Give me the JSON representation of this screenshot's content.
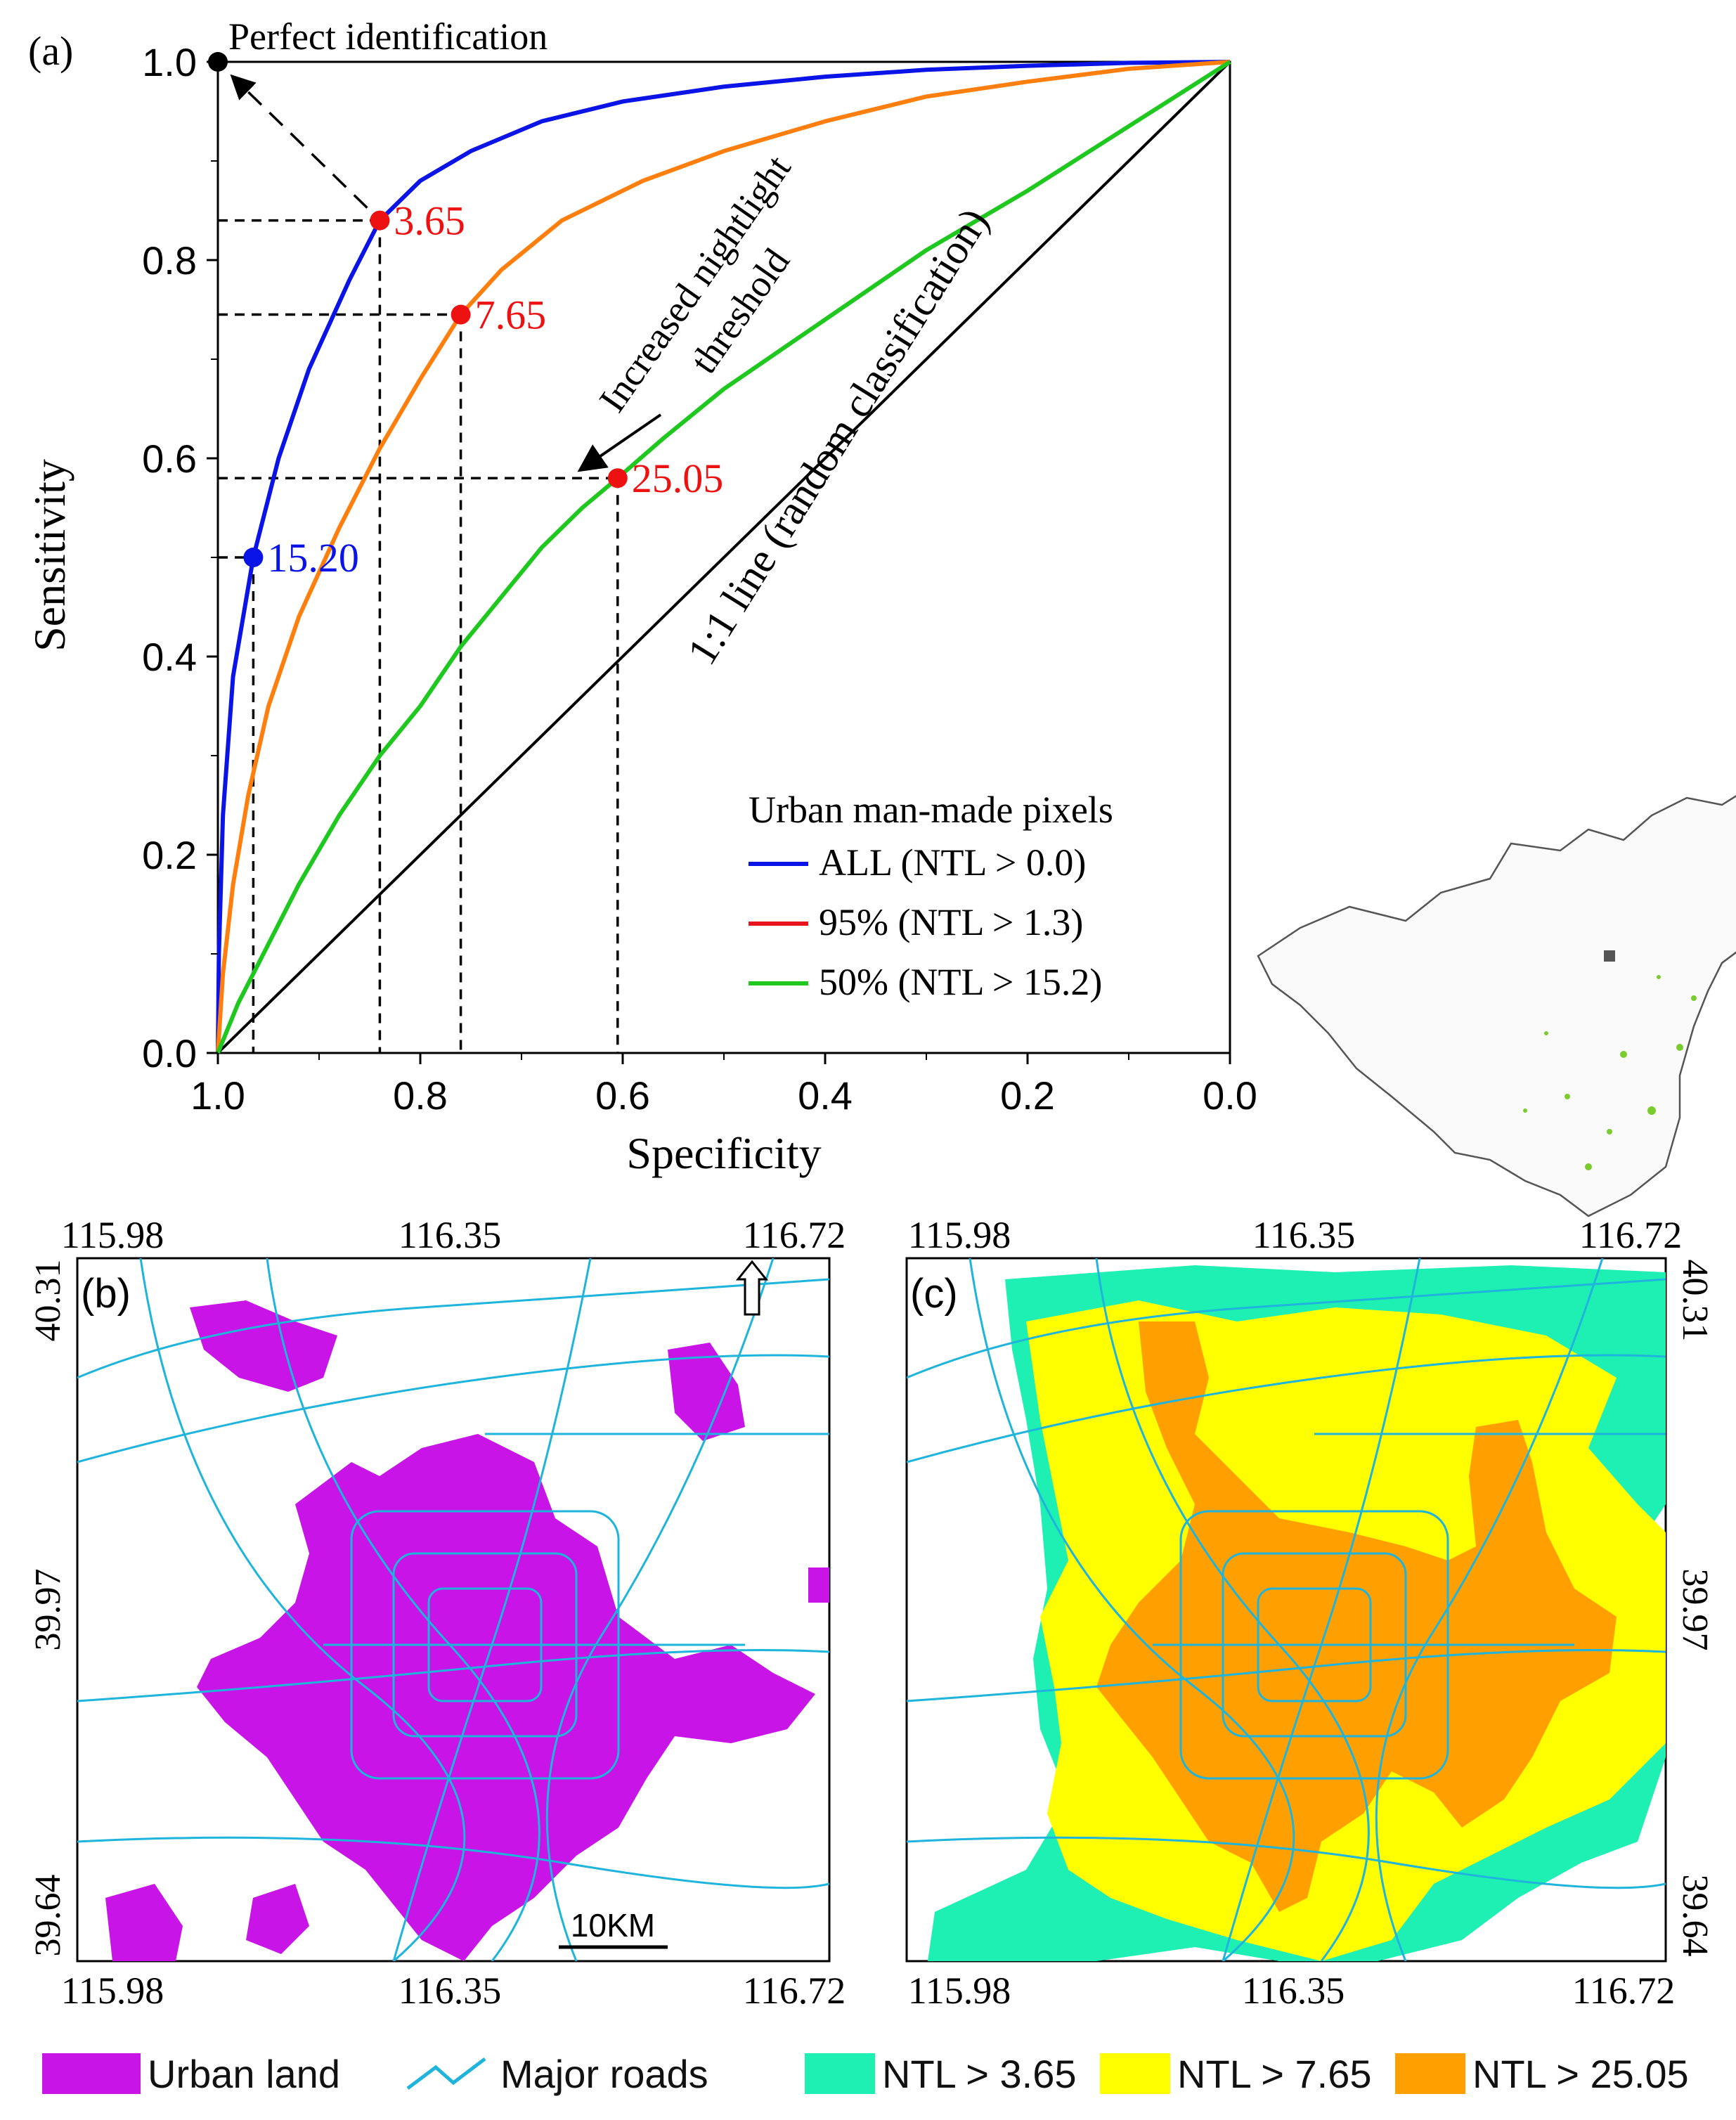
{
  "panel_a": {
    "label": "(a)",
    "perfect_label": "Perfect identification",
    "arrow_text_1": "Increased nightlight",
    "arrow_text_2": "threshold",
    "diag_label": "1:1 line (random classification)",
    "legend_title": "Urban man-made pixels"
  },
  "chart_data": {
    "type": "line",
    "xlabel": "Specificity",
    "ylabel": "Sensitivity",
    "xlim": [
      1.0,
      0.0
    ],
    "ylim": [
      0.0,
      1.0
    ],
    "x_ticks": [
      "1.0",
      "0.8",
      "0.6",
      "0.4",
      "0.2",
      "0.0"
    ],
    "y_ticks": [
      "0.0",
      "0.2",
      "0.4",
      "0.6",
      "0.8",
      "1.0"
    ],
    "grid": false,
    "legend_position": "bottom-right",
    "series": [
      {
        "name": "ALL (NTL > 0.0)",
        "color": "#0a14e6",
        "x": [
          1.0,
          0.999,
          0.995,
          0.985,
          0.965,
          0.94,
          0.91,
          0.87,
          0.84,
          0.8,
          0.75,
          0.68,
          0.6,
          0.5,
          0.4,
          0.3,
          0.2,
          0.1,
          0.0
        ],
        "y": [
          0.0,
          0.1,
          0.24,
          0.38,
          0.5,
          0.6,
          0.69,
          0.78,
          0.84,
          0.88,
          0.91,
          0.94,
          0.96,
          0.975,
          0.985,
          0.992,
          0.996,
          0.999,
          1.0
        ]
      },
      {
        "name": "95% (NTL > 1.3)",
        "color": "#ff7f0e",
        "legend_color": "#e8141e",
        "x": [
          1.0,
          0.995,
          0.985,
          0.97,
          0.95,
          0.92,
          0.88,
          0.84,
          0.8,
          0.76,
          0.72,
          0.66,
          0.58,
          0.5,
          0.4,
          0.3,
          0.2,
          0.1,
          0.0
        ],
        "y": [
          0.0,
          0.08,
          0.17,
          0.26,
          0.35,
          0.44,
          0.53,
          0.61,
          0.68,
          0.745,
          0.79,
          0.84,
          0.88,
          0.91,
          0.94,
          0.965,
          0.98,
          0.993,
          1.0
        ]
      },
      {
        "name": "50% (NTL > 15.2)",
        "color": "#1ec81e",
        "x": [
          1.0,
          0.98,
          0.95,
          0.92,
          0.88,
          0.84,
          0.8,
          0.76,
          0.72,
          0.68,
          0.64,
          0.605,
          0.56,
          0.5,
          0.4,
          0.3,
          0.2,
          0.1,
          0.0
        ],
        "y": [
          0.0,
          0.05,
          0.11,
          0.17,
          0.24,
          0.3,
          0.35,
          0.41,
          0.46,
          0.51,
          0.55,
          0.58,
          0.62,
          0.67,
          0.74,
          0.81,
          0.87,
          0.935,
          1.0
        ]
      }
    ],
    "diagonal": {
      "x": [
        1.0,
        0.0
      ],
      "y": [
        0.0,
        1.0
      ]
    },
    "thresholds": [
      {
        "x": 0.84,
        "y": 0.84,
        "label": "3.65",
        "color": "#ee1111"
      },
      {
        "x": 0.76,
        "y": 0.745,
        "label": "7.65",
        "color": "#ee1111"
      },
      {
        "x": 0.605,
        "y": 0.58,
        "label": "25.05",
        "color": "#ee1111"
      },
      {
        "x": 0.965,
        "y": 0.5,
        "label": "15.20",
        "color": "#0a14e6"
      }
    ],
    "perfect_point": {
      "x": 1.0,
      "y": 1.0
    }
  },
  "panel_b": {
    "label": "(b)",
    "top_ticks": [
      "115.98",
      "116.35",
      "116.72"
    ],
    "bottom_ticks": [
      "115.98",
      "116.35",
      "116.72"
    ],
    "left_ticks": [
      "40.31",
      "39.97",
      "39.64"
    ],
    "scale_label": "10KM"
  },
  "panel_c": {
    "label": "(c)",
    "top_ticks": [
      "115.98",
      "116.35",
      "116.72"
    ],
    "bottom_ticks": [
      "115.98",
      "116.35",
      "116.72"
    ],
    "right_ticks": [
      "40.31",
      "39.97",
      "39.64"
    ]
  },
  "legend": {
    "items": [
      {
        "label": "Urban land",
        "color": "#c814e6"
      },
      {
        "label": "Major roads",
        "color": "#1eb4dc"
      },
      {
        "label": "NTL > 3.65",
        "color": "#1ef0b4"
      },
      {
        "label": "NTL > 7.65",
        "color": "#ffff00"
      },
      {
        "label": "NTL > 25.05",
        "color": "#ff9f00"
      }
    ]
  }
}
